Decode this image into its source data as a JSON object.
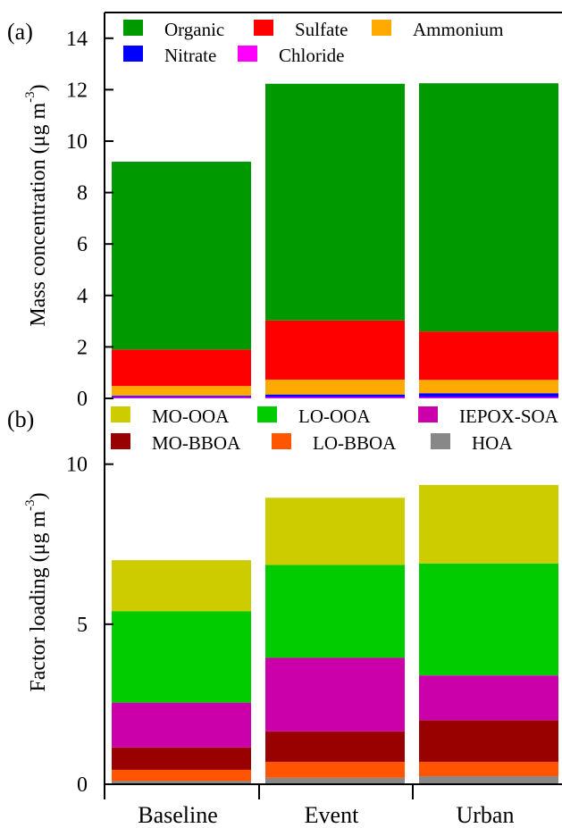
{
  "chart_data": [
    {
      "type": "bar",
      "stacked": true,
      "panel_label": "(a)",
      "ylabel_main": "Mass concentration (μg m",
      "ylabel_exp": "-3",
      "ylabel_close": ")",
      "categories": [
        "Baseline",
        "Event",
        "Urban"
      ],
      "ylim": [
        0,
        15
      ],
      "yticks": [
        0,
        2,
        4,
        6,
        8,
        10,
        12,
        14
      ],
      "grid": false,
      "legend_position": "top",
      "legend_rows": [
        [
          "Organic",
          "Sulfate",
          "Ammonium"
        ],
        [
          "Nitrate",
          "Chloride"
        ]
      ],
      "series": [
        {
          "name": "Chloride",
          "color": "#ff00ff",
          "values": [
            0.05,
            0.05,
            0.05
          ]
        },
        {
          "name": "Nitrate",
          "color": "#0000ff",
          "values": [
            0.05,
            0.1,
            0.15
          ]
        },
        {
          "name": "Ammonium",
          "color": "#ffaa00",
          "values": [
            0.38,
            0.58,
            0.52
          ]
        },
        {
          "name": "Sulfate",
          "color": "#ff0000",
          "values": [
            1.42,
            2.3,
            1.88
          ]
        },
        {
          "name": "Organic",
          "color": "#009900",
          "values": [
            7.3,
            9.2,
            9.65
          ]
        }
      ]
    },
    {
      "type": "bar",
      "stacked": true,
      "panel_label": "(b)",
      "ylabel_main": "Factor loading (μg m",
      "ylabel_exp": "-3",
      "ylabel_close": ")",
      "categories": [
        "Baseline",
        "Event",
        "Urban"
      ],
      "ylim": [
        0,
        12
      ],
      "yticks": [
        0,
        5,
        10
      ],
      "grid": false,
      "legend_position": "top",
      "legend_rows": [
        [
          "MO-OOA",
          "LO-OOA",
          "IEPOX-SOA"
        ],
        [
          "MO-BBOA",
          "LO-BBOA",
          "HOA"
        ]
      ],
      "series": [
        {
          "name": "HOA",
          "color": "#888888",
          "values": [
            0.1,
            0.2,
            0.25
          ]
        },
        {
          "name": "LO-BBOA",
          "color": "#ff5500",
          "values": [
            0.35,
            0.5,
            0.45
          ]
        },
        {
          "name": "MO-BBOA",
          "color": "#990000",
          "values": [
            0.7,
            0.95,
            1.3
          ]
        },
        {
          "name": "IEPOX-SOA",
          "color": "#cc00aa",
          "values": [
            1.4,
            2.3,
            1.4
          ]
        },
        {
          "name": "LO-OOA",
          "color": "#00cc00",
          "values": [
            2.85,
            2.9,
            3.5
          ]
        },
        {
          "name": "MO-OOA",
          "color": "#cccc00",
          "values": [
            1.6,
            2.1,
            2.45
          ]
        }
      ]
    }
  ]
}
